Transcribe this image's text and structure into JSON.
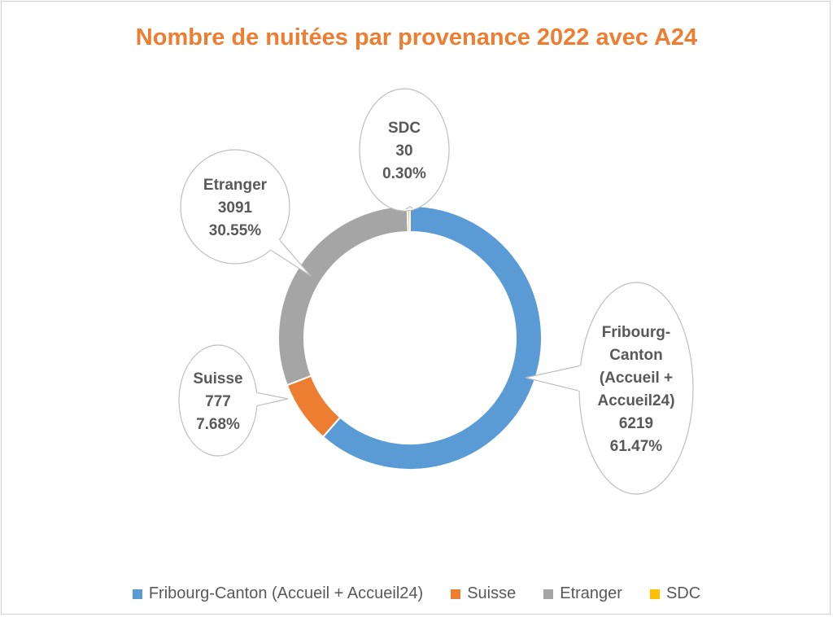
{
  "chart_data": {
    "type": "doughnut",
    "title": "Nombre de nuitées par provenance  2022 avec A24",
    "legend_position": "bottom",
    "series": [
      {
        "name": "Fribourg-Canton (Accueil + Accueil24)",
        "label_lines": [
          "Fribourg-",
          "Canton",
          "(Accueil +",
          "Accueil24)"
        ],
        "value": 6219,
        "percent": "61.47%",
        "color": "#5B9BD5"
      },
      {
        "name": "Suisse",
        "label_lines": [
          "Suisse"
        ],
        "value": 777,
        "percent": "7.68%",
        "color": "#ED7D31"
      },
      {
        "name": "Etranger",
        "label_lines": [
          "Etranger"
        ],
        "value": 3091,
        "percent": "30.55%",
        "color": "#A5A5A5"
      },
      {
        "name": "SDC",
        "label_lines": [
          "SDC"
        ],
        "value": 30,
        "percent": "0.30%",
        "color": "#FFC000"
      }
    ]
  }
}
